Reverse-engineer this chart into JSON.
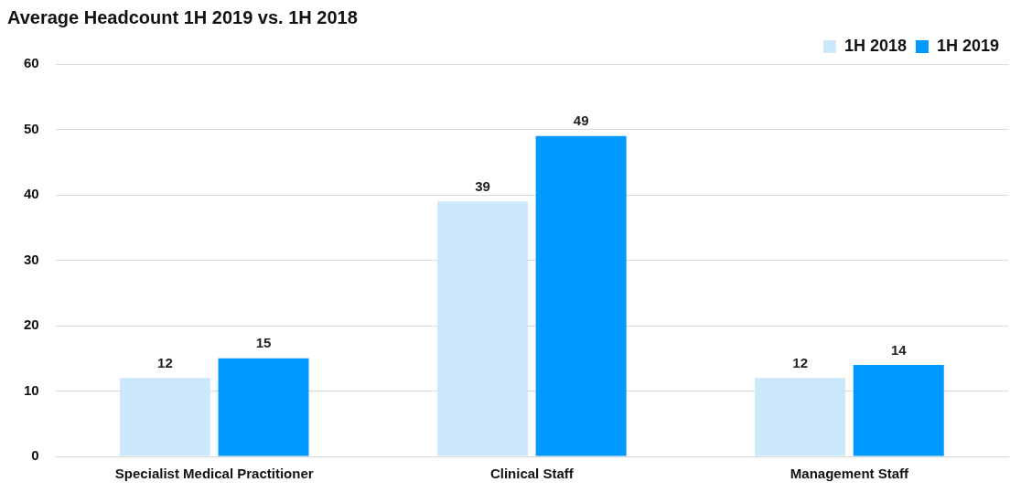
{
  "chart_data": {
    "type": "bar",
    "title": "Average Headcount 1H 2019 vs. 1H 2018",
    "categories": [
      "Specialist Medical Practitioner",
      "Clinical Staff",
      "Management Staff"
    ],
    "series": [
      {
        "name": "1H 2018",
        "color": "#cce9fb",
        "values": [
          12,
          39,
          12
        ]
      },
      {
        "name": "1H 2019",
        "color": "#0099ff",
        "values": [
          15,
          49,
          14
        ]
      }
    ],
    "ylim": [
      0,
      60
    ],
    "yticks": [
      0,
      10,
      20,
      30,
      40,
      50,
      60
    ],
    "grid": "y",
    "legend": "top right",
    "data_labels": true
  }
}
